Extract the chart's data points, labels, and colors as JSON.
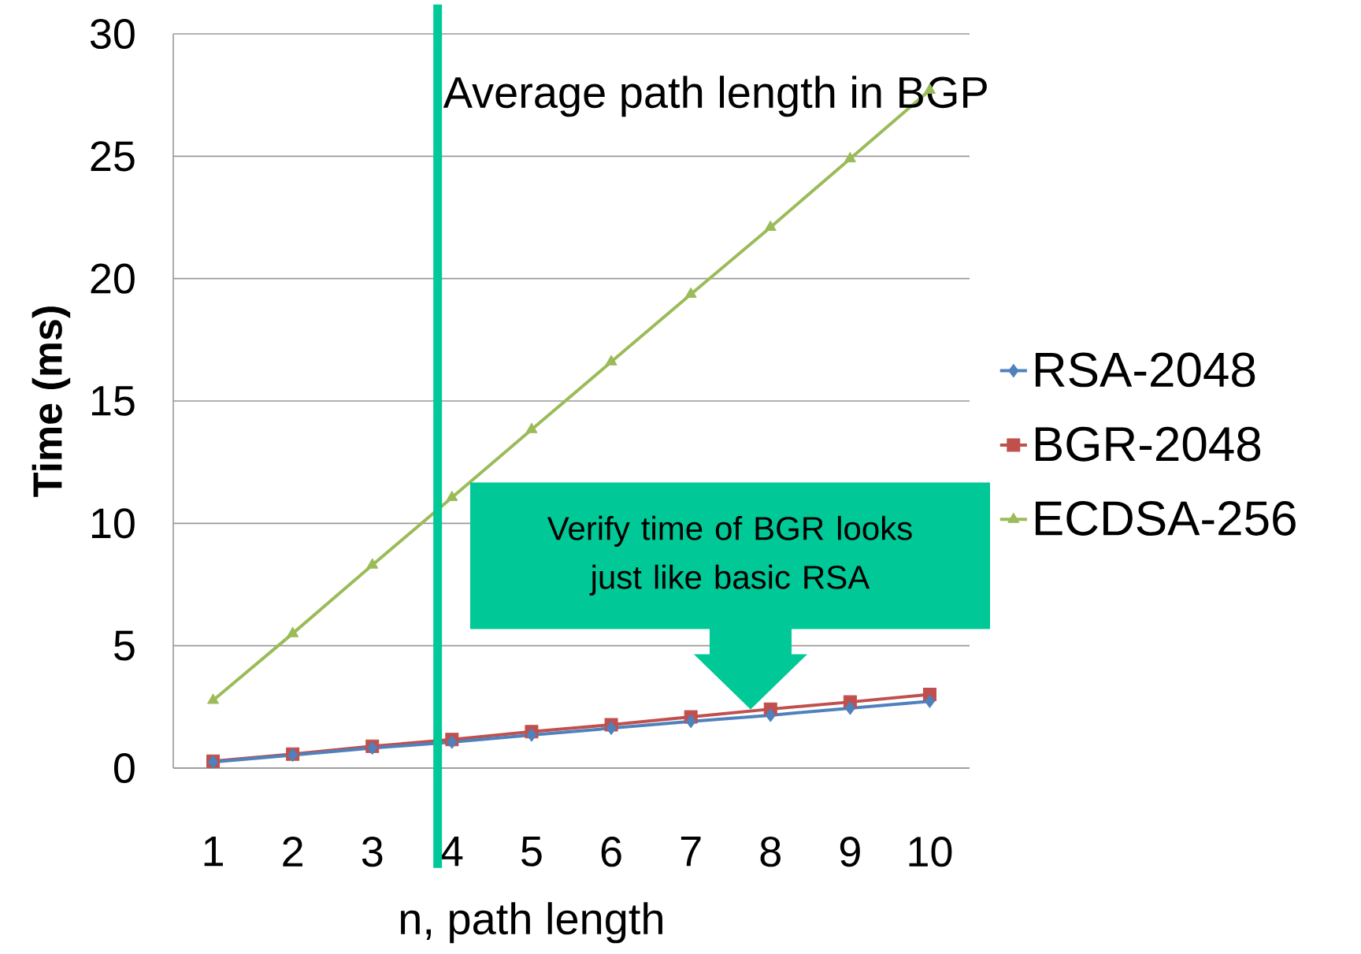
{
  "chart_data": {
    "type": "line",
    "xlabel": "n, path length",
    "ylabel": "Time (ms)",
    "x": [
      1,
      2,
      3,
      4,
      5,
      6,
      7,
      8,
      9,
      10
    ],
    "xlim": [
      0.5,
      10.5
    ],
    "xticks": [
      1,
      2,
      3,
      4,
      5,
      6,
      7,
      8,
      9,
      10
    ],
    "ylim": [
      0,
      30
    ],
    "yticks": [
      0,
      5,
      10,
      15,
      20,
      25,
      30
    ],
    "grid": "y",
    "legend": "right",
    "series": [
      {
        "name": "RSA-2048",
        "color": "#4f81bd",
        "marker": "diamond",
        "values": [
          0.25,
          0.53,
          0.82,
          1.06,
          1.35,
          1.63,
          1.91,
          2.16,
          2.45,
          2.73
        ]
      },
      {
        "name": "BGR-2048",
        "color": "#c0504d",
        "marker": "square",
        "values": [
          0.28,
          0.57,
          0.89,
          1.17,
          1.49,
          1.77,
          2.09,
          2.41,
          2.7,
          3.01
        ]
      },
      {
        "name": "ECDSA-256",
        "color": "#9bbb59",
        "marker": "triangle",
        "values": [
          2.77,
          5.5,
          8.3,
          11.06,
          13.83,
          16.6,
          19.36,
          22.1,
          24.9,
          27.7
        ]
      }
    ],
    "ref_lines": [
      {
        "axis": "x",
        "value": 3.82,
        "label": "Average path length in BGP",
        "color": "#00c896"
      }
    ],
    "annotations": [
      "Verify time of BGR looks just like basic RSA"
    ]
  }
}
